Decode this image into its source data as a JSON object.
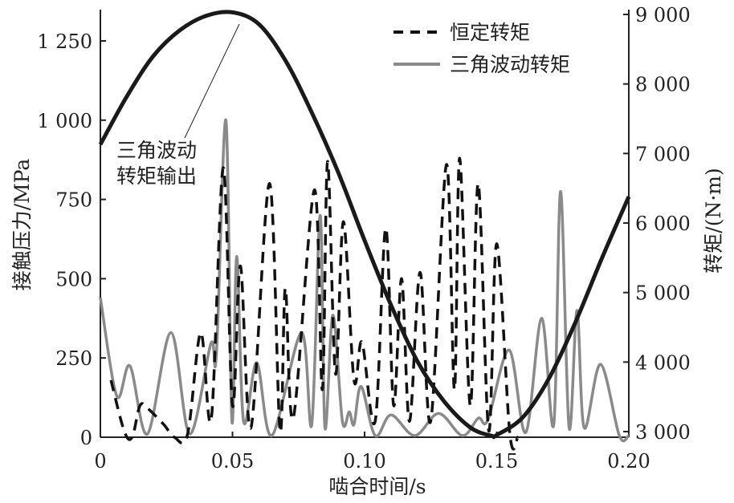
{
  "chart_data": {
    "type": "line",
    "xlabel": "啮合时间/s",
    "ylabel_left": "接触压力/MPa",
    "ylabel_right": "转矩/(N·m)",
    "xlim": [
      0,
      0.2
    ],
    "ylim_left": [
      0,
      1250
    ],
    "ylim_right": [
      3000,
      9000
    ],
    "x_ticks": [
      "0",
      "0.05",
      "0.10",
      "0.15",
      "0.20"
    ],
    "x_tick_values": [
      0,
      0.05,
      0.1,
      0.15,
      0.2
    ],
    "y_left_ticks": [
      "0",
      "250",
      "500",
      "750",
      "1 000",
      "1 250"
    ],
    "y_left_tick_values": [
      0,
      250,
      500,
      750,
      1000,
      1250
    ],
    "y_right_ticks": [
      "3 000",
      "4 000",
      "5 000",
      "6 000",
      "7 000",
      "8 000",
      "9 000"
    ],
    "y_right_tick_values": [
      3000,
      4000,
      5000,
      6000,
      7000,
      8000,
      9000
    ],
    "grid": false,
    "legend_position": "top-right",
    "annotation": {
      "lines": [
        "三角波动",
        "转矩输出"
      ],
      "target_series": "torque_output"
    },
    "series": [
      {
        "name": "恒定转矩",
        "axis": "left",
        "style": "dashed",
        "color": "#111111",
        "x": [
          0.004,
          0.009,
          0.012,
          0.015,
          0.018,
          0.024,
          0.028,
          0.033,
          0.038,
          0.042,
          0.0465,
          0.05,
          0.053,
          0.057,
          0.064,
          0.068,
          0.07,
          0.073,
          0.081,
          0.084,
          0.086,
          0.089,
          0.092,
          0.096,
          0.099,
          0.104,
          0.108,
          0.111,
          0.114,
          0.117,
          0.121,
          0.125,
          0.131,
          0.134,
          0.136,
          0.14,
          0.143,
          0.147,
          0.15,
          0.155,
          0.158
        ],
        "y": [
          180,
          20,
          0,
          100,
          90,
          40,
          0,
          10,
          330,
          60,
          850,
          100,
          540,
          30,
          800,
          20,
          470,
          60,
          780,
          150,
          870,
          200,
          680,
          180,
          300,
          50,
          660,
          100,
          500,
          50,
          520,
          50,
          860,
          150,
          880,
          100,
          800,
          20,
          610,
          10,
          0
        ]
      },
      {
        "name": "三角波动转矩",
        "axis": "left",
        "style": "solid",
        "color": "#8a8a8a",
        "x": [
          0,
          0.0062,
          0.0112,
          0.0178,
          0.0267,
          0.0338,
          0.0418,
          0.0439,
          0.0475,
          0.0498,
          0.0516,
          0.0542,
          0.0592,
          0.0649,
          0.0761,
          0.08,
          0.0832,
          0.085,
          0.088,
          0.0916,
          0.0942,
          0.096,
          0.0987,
          0.104,
          0.11,
          0.119,
          0.128,
          0.137,
          0.143,
          0.1467,
          0.1547,
          0.161,
          0.167,
          0.1716,
          0.1742,
          0.1774,
          0.1804,
          0.1831,
          0.1893,
          0.1964,
          0.2
        ],
        "y": [
          440,
          130,
          225,
          10,
          330,
          10,
          295,
          260,
          1000,
          50,
          570,
          50,
          235,
          5,
          330,
          40,
          700,
          30,
          385,
          50,
          80,
          40,
          160,
          5,
          70,
          5,
          75,
          5,
          60,
          55,
          275,
          15,
          375,
          40,
          775,
          30,
          400,
          30,
          230,
          5,
          5
        ]
      },
      {
        "id": "torque_output",
        "axis": "right",
        "style": "solid-thick",
        "color": "#1a1a1a",
        "x": [
          0,
          0.01,
          0.02,
          0.03,
          0.04,
          0.05,
          0.06,
          0.07,
          0.08,
          0.09,
          0.1,
          0.11,
          0.12,
          0.13,
          0.14,
          0.148,
          0.15,
          0.16,
          0.17,
          0.18,
          0.19,
          0.2
        ],
        "y": [
          7130,
          7820,
          8400,
          8770,
          8980,
          9030,
          8860,
          8340,
          7590,
          6730,
          5750,
          4820,
          4010,
          3440,
          3060,
          2940,
          2950,
          3210,
          3780,
          4590,
          5510,
          6380
        ]
      }
    ]
  }
}
